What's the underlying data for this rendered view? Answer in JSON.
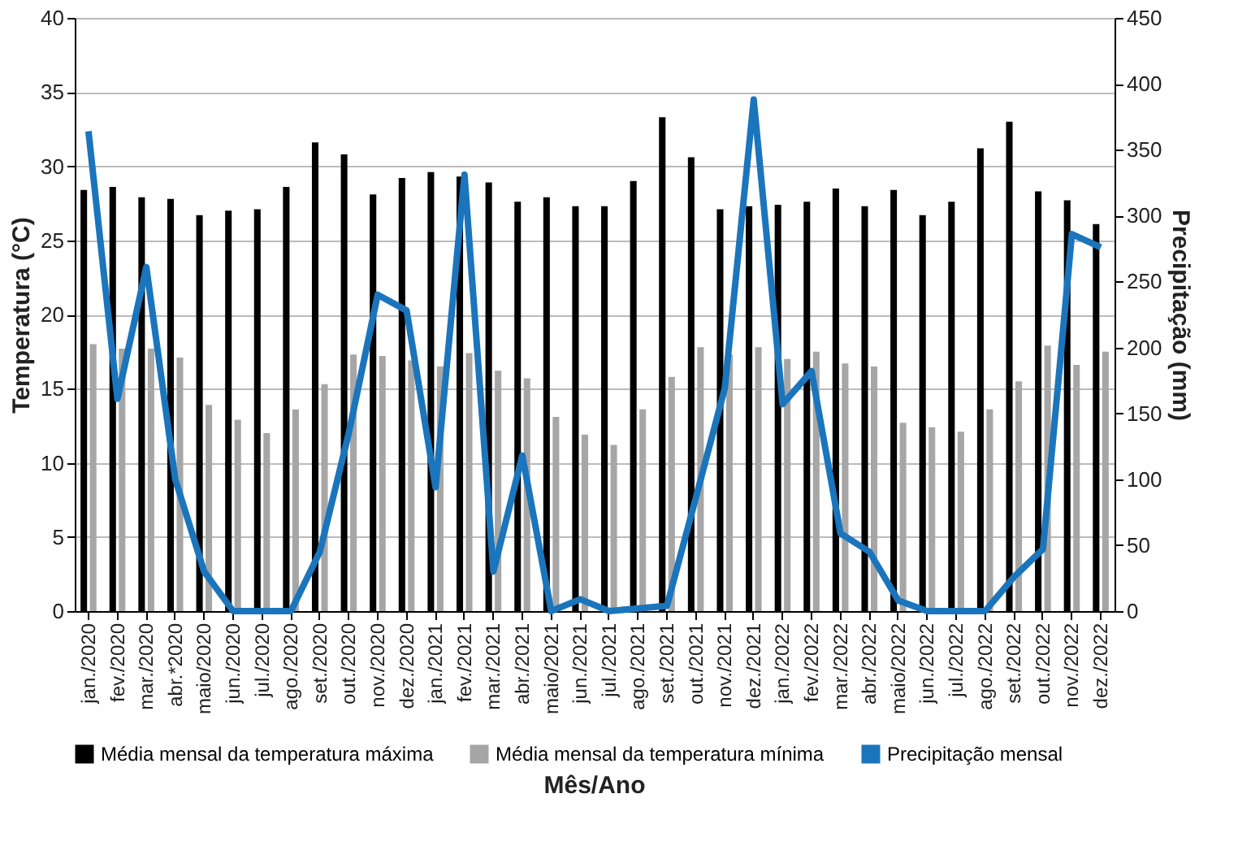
{
  "chart_data": {
    "type": "bar",
    "xlabel": "Mês/Ano",
    "ylabel": "Temperatura (°C)",
    "y2label": "Precipitação (mm)",
    "categories": [
      "jan./2020",
      "fev./2020",
      "mar./2020",
      "abr.*2020",
      "maio/2020",
      "jun./2020",
      "jul./2020",
      "ago./2020",
      "set./2020",
      "out./2020",
      "nov./2020",
      "dez./2020",
      "jan./2021",
      "fev./2021",
      "mar./2021",
      "abr./2021",
      "maio/2021",
      "jun./2021",
      "jul./2021",
      "ago./2021",
      "set./2021",
      "out./2021",
      "nov./2021",
      "dez./2021",
      "jan./2022",
      "fev./2022",
      "mar./2022",
      "abr./2022",
      "maio/2022",
      "jun./2022",
      "jul./2022",
      "ago./2022",
      "set./2022",
      "out./2022",
      "nov./2022",
      "dez./2022"
    ],
    "series": [
      {
        "name": "Média mensal da temperatura máxima",
        "color": "#000000",
        "values": [
          28.4,
          28.6,
          27.9,
          27.8,
          26.7,
          27.0,
          27.1,
          28.6,
          31.6,
          30.8,
          28.1,
          29.2,
          29.6,
          29.3,
          28.9,
          27.6,
          27.9,
          27.3,
          27.3,
          29.0,
          33.3,
          30.6,
          27.1,
          27.3,
          27.4,
          27.6,
          28.5,
          27.3,
          28.4,
          26.7,
          27.6,
          31.2,
          33.0,
          28.3,
          27.7,
          26.1
        ]
      },
      {
        "name": "Média mensal da temperatura mínima",
        "color": "#a6a6a6",
        "values": [
          18.0,
          17.7,
          17.7,
          17.1,
          13.9,
          12.9,
          12.0,
          13.6,
          15.3,
          17.3,
          17.2,
          16.9,
          16.5,
          17.4,
          16.2,
          15.7,
          13.1,
          11.9,
          11.2,
          13.6,
          15.8,
          17.8,
          17.3,
          17.8,
          17.0,
          17.5,
          16.7,
          16.5,
          12.7,
          12.4,
          12.1,
          13.6,
          15.5,
          17.9,
          16.6,
          17.5
        ]
      },
      {
        "name": "Precipitação mensal",
        "color": "#1a75bc",
        "type": "line",
        "axis": "y2",
        "values": [
          364,
          161,
          261,
          100,
          30,
          0,
          0,
          0,
          45,
          135,
          240,
          228,
          94,
          331,
          30,
          118,
          0,
          9,
          0,
          2,
          4,
          86,
          169,
          388,
          157,
          182,
          59,
          45,
          8,
          0,
          0,
          0,
          26,
          47,
          286,
          276
        ]
      }
    ],
    "ylim": [
      0,
      40
    ],
    "yticks": [
      0,
      5,
      10,
      15,
      20,
      25,
      30,
      35,
      40
    ],
    "y2lim": [
      0,
      450
    ],
    "y2ticks": [
      0,
      50,
      100,
      150,
      200,
      250,
      300,
      350,
      400,
      450
    ],
    "grid": "y",
    "legend": "bottom"
  }
}
